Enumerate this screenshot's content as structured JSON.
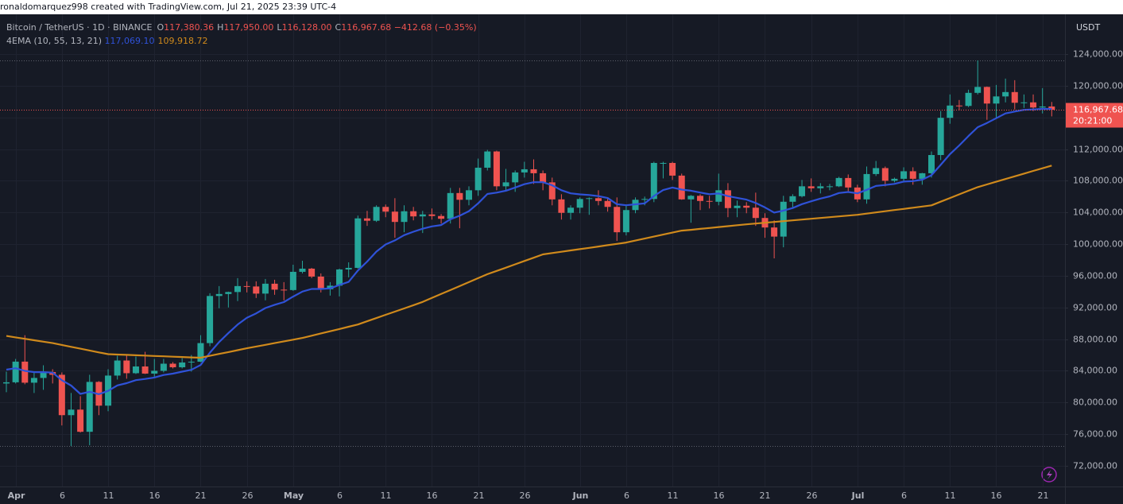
{
  "header": {
    "attribution": "ronaldomarquez998 created with TradingView.com, Jul 21, 2025 23:39 UTC-4"
  },
  "chart_data": {
    "type": "candlestick",
    "legend": {
      "symbol": "Bitcoin / TetherUS · 1D · BINANCE",
      "ohlc": [
        {
          "key": "O",
          "value": "117,380.36"
        },
        {
          "key": "H",
          "value": "117,950.00"
        },
        {
          "key": "L",
          "value": "116,128.00"
        },
        {
          "key": "C",
          "value": "116,967.68"
        }
      ],
      "change": "−412.68 (−0.35%)"
    },
    "currency": "USDT",
    "last_price_label": "116,967.68",
    "countdown": "20:21:00",
    "up_color": "#26a69a",
    "down_color": "#ef5350",
    "grid": true,
    "categories": [
      null,
      "Apr",
      null,
      null,
      null,
      null,
      "6",
      null,
      null,
      null,
      null,
      "11",
      null,
      null,
      null,
      null,
      "16",
      null,
      null,
      null,
      null,
      "21",
      null,
      null,
      null,
      null,
      "26",
      null,
      null,
      null,
      null,
      "May",
      null,
      null,
      null,
      null,
      "6",
      null,
      null,
      null,
      null,
      "11",
      null,
      null,
      null,
      null,
      "16",
      null,
      null,
      null,
      null,
      "21",
      null,
      null,
      null,
      null,
      "26",
      null,
      null,
      null,
      null,
      null,
      "Jun",
      null,
      null,
      null,
      null,
      "6",
      null,
      null,
      null,
      null,
      "11",
      null,
      null,
      null,
      null,
      "16",
      null,
      null,
      null,
      null,
      "21",
      null,
      null,
      null,
      null,
      "26",
      null,
      null,
      null,
      null,
      "Jul",
      null,
      null,
      null,
      null,
      "6",
      null,
      null,
      null,
      null,
      "11",
      null,
      null,
      null,
      null,
      "16",
      null,
      null,
      null,
      null,
      "21",
      null
    ],
    "open": [
      82400,
      82550,
      85160,
      82500,
      83100,
      83850,
      83500,
      78400,
      79100,
      76300,
      82600,
      79600,
      83400,
      85300,
      83700,
      84550,
      83650,
      84000,
      84900,
      84450,
      85050,
      85150,
      87500,
      93450,
      93700,
      93950,
      94700,
      94650,
      93750,
      95000,
      94250,
      94200,
      96500,
      96900,
      95900,
      94300,
      94750,
      96800,
      97000,
      103250,
      102950,
      104700,
      104100,
      102800,
      104150,
      103500,
      103750,
      103550,
      103200,
      106450,
      105600,
      106800,
      109650,
      111700,
      107300,
      107800,
      109050,
      109450,
      108950,
      107800,
      105650,
      103950,
      104600,
      105700,
      105800,
      105450,
      104700,
      101500,
      104300,
      105600,
      105700,
      110250,
      110250,
      108650,
      105650,
      106100,
      105450,
      105350,
      106800,
      104550,
      104850,
      104600,
      103300,
      102100,
      100950,
      105350,
      106050,
      107300,
      107050,
      107300,
      107300,
      108350,
      107150,
      105650,
      108850,
      109600,
      108000,
      108250,
      109200,
      108250,
      108950,
      111250,
      115950,
      117500,
      117450,
      119100,
      119850,
      117750,
      118650,
      119200,
      117850,
      117900,
      117250,
      117380.36
    ],
    "high": [
      83900,
      85500,
      88500,
      83900,
      84700,
      84200,
      83800,
      81200,
      80800,
      83500,
      82700,
      84200,
      85900,
      86100,
      85800,
      86400,
      85500,
      85500,
      85100,
      85600,
      86000,
      88500,
      93800,
      94700,
      94000,
      95700,
      95300,
      95300,
      95600,
      95500,
      95200,
      97400,
      97900,
      97000,
      96300,
      95200,
      96900,
      97700,
      103600,
      104200,
      104900,
      105000,
      105800,
      104900,
      104700,
      104200,
      104500,
      103800,
      107100,
      107100,
      107300,
      110800,
      111900,
      111800,
      109500,
      109300,
      110400,
      110700,
      109300,
      108400,
      106300,
      104900,
      105900,
      105900,
      106800,
      105900,
      105900,
      105000,
      105900,
      106000,
      110400,
      110400,
      110400,
      108900,
      106200,
      106300,
      106100,
      108900,
      107700,
      105500,
      105300,
      106500,
      103900,
      103000,
      106100,
      106300,
      108100,
      108300,
      107700,
      107600,
      108500,
      108800,
      107500,
      109800,
      110500,
      109800,
      108400,
      109700,
      109700,
      109000,
      111700,
      116800,
      118900,
      118200,
      119500,
      123200,
      119900,
      120100,
      120900,
      120700,
      118900,
      118900,
      119700,
      117950
    ],
    "low": [
      81300,
      82400,
      82300,
      81200,
      81600,
      82400,
      77100,
      74500,
      76200,
      74600,
      78400,
      78900,
      82900,
      83000,
      83600,
      83600,
      83100,
      83800,
      84300,
      84300,
      83900,
      85100,
      87100,
      91900,
      92000,
      92800,
      93900,
      93200,
      92900,
      93600,
      92900,
      94100,
      96300,
      95700,
      93900,
      93500,
      93400,
      95800,
      96900,
      102300,
      102800,
      103400,
      100800,
      101500,
      103000,
      101400,
      103100,
      102600,
      102600,
      102000,
      104900,
      106100,
      109300,
      106800,
      106800,
      106600,
      108400,
      107600,
      106800,
      104900,
      103100,
      103100,
      103900,
      103700,
      104900,
      104100,
      100400,
      101100,
      103900,
      104900,
      105300,
      108300,
      108100,
      105600,
      102700,
      104300,
      104500,
      104900,
      103400,
      103400,
      103900,
      102300,
      100800,
      98200,
      99600,
      104600,
      105900,
      106600,
      106400,
      106800,
      107200,
      106700,
      105300,
      105100,
      108600,
      107300,
      107800,
      107800,
      107500,
      107500,
      108400,
      110600,
      115200,
      116900,
      117300,
      118900,
      115700,
      115800,
      117900,
      117000,
      117200,
      116800,
      116500,
      116128
    ],
    "close": [
      82550,
      85160,
      82500,
      83100,
      83850,
      83500,
      78400,
      79100,
      76300,
      82600,
      79600,
      83400,
      85300,
      83700,
      84550,
      83650,
      84000,
      84900,
      84450,
      85050,
      85150,
      87500,
      93450,
      93700,
      93950,
      94700,
      94650,
      93750,
      95000,
      94250,
      94200,
      96500,
      96900,
      95900,
      94300,
      94750,
      96800,
      97000,
      103250,
      102950,
      104700,
      104100,
      102800,
      104150,
      103500,
      103750,
      103550,
      103200,
      106450,
      105600,
      106800,
      109650,
      111700,
      107300,
      107800,
      109050,
      109450,
      108950,
      107800,
      105650,
      103950,
      104600,
      105700,
      105800,
      105450,
      104700,
      101500,
      104300,
      105600,
      105700,
      110250,
      110250,
      108650,
      105650,
      106100,
      105450,
      105350,
      106800,
      104550,
      104850,
      104600,
      103300,
      102100,
      100950,
      105350,
      106050,
      107300,
      107050,
      107300,
      107300,
      108350,
      107150,
      105650,
      108850,
      109600,
      108000,
      108250,
      109200,
      108250,
      108950,
      111250,
      115950,
      117500,
      117450,
      119100,
      119850,
      117750,
      118650,
      119200,
      117850,
      117900,
      117250,
      117380.36,
      116967.68
    ],
    "indicator": {
      "label": "4EMA (10, 55, 13, 21)",
      "lines": [
        {
          "color": "#2f52d8",
          "last_label": "117,069.10",
          "values": [
            84150,
            84330,
            84000,
            83840,
            83840,
            83780,
            82810,
            82140,
            81090,
            81360,
            81040,
            81470,
            82160,
            82440,
            82820,
            82970,
            83150,
            83470,
            83650,
            83900,
            84130,
            84730,
            86300,
            87630,
            88770,
            89840,
            90700,
            91250,
            91930,
            92340,
            92680,
            93370,
            94000,
            94340,
            94340,
            94410,
            94840,
            95230,
            96670,
            97800,
            99050,
            99960,
            100470,
            101130,
            101560,
            101950,
            102240,
            102410,
            103140,
            103580,
            104160,
            105150,
            106330,
            106500,
            106740,
            107150,
            107570,
            107820,
            107820,
            107430,
            106800,
            106410,
            106280,
            106200,
            106060,
            105820,
            105040,
            104910,
            105030,
            105150,
            106070,
            106820,
            107150,
            106880,
            106740,
            106510,
            106300,
            106390,
            106060,
            105840,
            105620,
            105200,
            104640,
            103980,
            104230,
            104560,
            105050,
            105410,
            105750,
            106030,
            106450,
            106580,
            106410,
            106850,
            107350,
            107470,
            107610,
            107900,
            107960,
            108140,
            108700,
            110010,
            111360,
            112460,
            113650,
            114770,
            115300,
            115900,
            116500,
            116740,
            116950,
            117000,
            117070,
            117069.1
          ]
        },
        {
          "color": "#d08a1c",
          "last_label": "109,918.72",
          "values": [
            88400,
            88220,
            88040,
            87860,
            87680,
            87500,
            87270,
            87030,
            86800,
            86570,
            86330,
            86100,
            86050,
            86010,
            85960,
            85920,
            85870,
            85830,
            85780,
            85740,
            85690,
            85650,
            85890,
            86130,
            86370,
            86610,
            86850,
            87070,
            87280,
            87500,
            87720,
            87930,
            88150,
            88430,
            88720,
            89000,
            89280,
            89570,
            89850,
            90260,
            90660,
            91070,
            91480,
            91880,
            92290,
            92700,
            93200,
            93700,
            94200,
            94700,
            95200,
            95700,
            96200,
            96620,
            97030,
            97450,
            97870,
            98280,
            98700,
            98870,
            99030,
            99200,
            99370,
            99530,
            99700,
            99870,
            100030,
            100200,
            100450,
            100700,
            100950,
            101200,
            101450,
            101700,
            101810,
            101930,
            102040,
            102160,
            102270,
            102390,
            102500,
            102600,
            102700,
            102800,
            102900,
            103000,
            103100,
            103200,
            103300,
            103400,
            103500,
            103600,
            103700,
            103850,
            104000,
            104150,
            104300,
            104450,
            104600,
            104750,
            104900,
            105360,
            105820,
            106280,
            106740,
            107200,
            107540,
            107880,
            108220,
            108560,
            108900,
            109240,
            109580,
            109918.72
          ]
        }
      ]
    },
    "ylim": [
      69390,
      129020
    ],
    "yticks": [
      {
        "value": 72000,
        "label": "72,000.00"
      },
      {
        "value": 76000,
        "label": "76,000.00"
      },
      {
        "value": 80000,
        "label": "80,000.00"
      },
      {
        "value": 84000,
        "label": "84,000.00"
      },
      {
        "value": 88000,
        "label": "88,000.00"
      },
      {
        "value": 92000,
        "label": "92,000.00"
      },
      {
        "value": 96000,
        "label": "96,000.00"
      },
      {
        "value": 100000,
        "label": "100,000.00"
      },
      {
        "value": 104000,
        "label": "104,000.00"
      },
      {
        "value": 108000,
        "label": "108,000.00"
      },
      {
        "value": 112000,
        "label": "112,000.00"
      },
      {
        "value": 116000,
        "label": "116,000.00"
      },
      {
        "value": 120000,
        "label": "120,000.00"
      },
      {
        "value": 124000,
        "label": "124,000.00"
      }
    ]
  }
}
